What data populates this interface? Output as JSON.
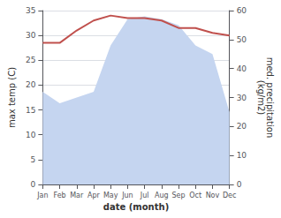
{
  "chart_data": {
    "type": "line",
    "categories": [
      "Jan",
      "Feb",
      "Mar",
      "Apr",
      "May",
      "Jun",
      "Jul",
      "Aug",
      "Sep",
      "Oct",
      "Nov",
      "Dec"
    ],
    "series": [
      {
        "type": "area",
        "axis": "y2",
        "color": "#c5d5f0",
        "values": [
          32,
          28,
          30,
          32,
          48,
          57,
          58,
          57,
          55,
          48,
          45,
          25
        ]
      },
      {
        "type": "line",
        "color": "#c0504d",
        "values": [
          28.5,
          28.5,
          31.0,
          33.0,
          34.0,
          33.5,
          33.5,
          33.0,
          31.5,
          31.5,
          30.5,
          30.0
        ]
      }
    ],
    "xlabel": "date (month)",
    "ylabel": "max temp (C)",
    "y2label": "med. precipitation\n(kg/m2)",
    "ylim": [
      0,
      35
    ],
    "yticks": [
      0,
      5,
      10,
      15,
      20,
      25,
      30,
      35
    ],
    "y2lim": [
      0,
      60
    ],
    "y2ticks": [
      0,
      10,
      20,
      30,
      40,
      50,
      60
    ],
    "grid": true
  }
}
